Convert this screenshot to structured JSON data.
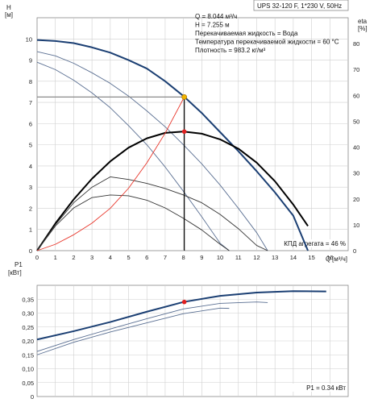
{
  "chart_data": [
    {
      "type": "line",
      "title": "UPS 32-120 F, 1*230 V, 50Hz",
      "ylabel": "H",
      "yunit": "[м]",
      "y2label": "eta",
      "y2unit": "[%]",
      "xlabel": "Q",
      "xunit": "[м³/ч]",
      "xlim": [
        0,
        17
      ],
      "ylim": [
        0,
        11
      ],
      "y2lim": [
        0,
        90
      ],
      "xticks": [
        "0",
        "1",
        "2",
        "3",
        "4",
        "5",
        "6",
        "7",
        "8",
        "9",
        "10",
        "11",
        "12",
        "13",
        "14",
        "15",
        "16"
      ],
      "yticks": [
        "0",
        "1",
        "2",
        "3",
        "4",
        "5",
        "6",
        "7",
        "8",
        "9",
        "10"
      ],
      "y2ticks": [
        "0",
        "10",
        "20",
        "30",
        "40",
        "50",
        "60",
        "70",
        "80"
      ],
      "grid": true,
      "info_lines": [
        "Q = 8.044 м³/ч",
        "H = 7.255 м",
        "Перекачиваемая жидкость = Вода",
        "Температура перекачиваемой жидкости = 60 °C",
        "Плотность = 983.2 кг/м³"
      ],
      "efficiency_label": "КПД агрегата = 46 %",
      "operating_point": {
        "q": 8.044,
        "h": 7.255,
        "eta": 46
      },
      "series": [
        {
          "axis": "H",
          "color": "#1b3f73",
          "width": 2.0,
          "x": [
            0,
            1,
            2,
            3,
            4,
            5,
            6,
            7,
            8,
            9,
            10,
            11,
            12,
            13,
            14,
            14.8
          ],
          "y": [
            9.95,
            9.9,
            9.8,
            9.6,
            9.35,
            9.0,
            8.6,
            8.0,
            7.3,
            6.5,
            5.6,
            4.7,
            3.75,
            2.75,
            1.65,
            0.0
          ]
        },
        {
          "axis": "H",
          "color": "#5a6f92",
          "width": 0.9,
          "x": [
            0,
            1,
            2,
            3,
            4,
            5,
            6,
            7,
            8,
            9,
            10,
            11,
            12,
            12.6
          ],
          "y": [
            9.4,
            9.2,
            8.85,
            8.4,
            7.9,
            7.3,
            6.6,
            5.85,
            5.0,
            4.1,
            3.1,
            2.0,
            0.85,
            0.0
          ]
        },
        {
          "axis": "H",
          "color": "#5a6f92",
          "width": 0.9,
          "x": [
            0,
            1,
            2,
            3,
            4,
            5,
            6,
            7,
            8,
            9,
            10,
            10.5
          ],
          "y": [
            8.9,
            8.55,
            8.05,
            7.45,
            6.75,
            5.9,
            5.0,
            3.95,
            2.8,
            1.6,
            0.35,
            0.0
          ]
        },
        {
          "axis": "eta",
          "color": "#000000",
          "width": 2.0,
          "x": [
            0,
            1,
            2,
            3,
            4,
            5,
            6,
            7,
            8,
            9,
            10,
            11,
            12,
            13,
            14,
            14.8
          ],
          "y": [
            0,
            10.5,
            19.8,
            27.8,
            34.5,
            39.8,
            43.4,
            45.5,
            46.0,
            45.2,
            43.0,
            39.4,
            34.0,
            26.8,
            17.8,
            9.5
          ]
        },
        {
          "axis": "eta",
          "color": "#333333",
          "width": 0.9,
          "x": [
            0,
            1,
            2,
            3,
            4,
            5,
            6,
            7,
            8,
            9,
            10,
            11,
            12,
            12.6
          ],
          "y": [
            0,
            10,
            18.5,
            24.5,
            28.5,
            27.5,
            26,
            24,
            21.5,
            18.5,
            14,
            8.5,
            2,
            0
          ]
        },
        {
          "axis": "eta",
          "color": "#333333",
          "width": 0.9,
          "x": [
            0,
            1,
            2,
            3,
            4,
            5,
            6,
            7,
            8,
            9,
            10,
            10.5
          ],
          "y": [
            0,
            9.5,
            16.5,
            20.5,
            21.5,
            21.2,
            19.5,
            16.5,
            12.5,
            8,
            2.5,
            0
          ]
        },
        {
          "axis": "H",
          "color": "#e8352a",
          "width": 0.9,
          "x": [
            0,
            1,
            2,
            3,
            4,
            5,
            6,
            7,
            8.044
          ],
          "y": [
            0,
            0.3,
            0.75,
            1.3,
            2.0,
            2.95,
            4.15,
            5.55,
            7.255
          ]
        }
      ]
    },
    {
      "type": "line",
      "ylabel": "P1",
      "yunit": "[кВт]",
      "xlim": [
        0,
        17
      ],
      "ylim": [
        0,
        0.4
      ],
      "yticks": [
        "0",
        "0,05",
        "0,10",
        "0,15",
        "0,20",
        "0,25",
        "0,30",
        "0,35"
      ],
      "grid": true,
      "power_label": "P1 = 0.34 кВт",
      "operating_point": {
        "q": 8.044,
        "p": 0.34
      },
      "series": [
        {
          "color": "#1b3f73",
          "width": 2.0,
          "x": [
            0,
            2,
            4,
            6,
            8,
            10,
            12,
            14,
            15.8
          ],
          "y": [
            0.205,
            0.235,
            0.268,
            0.305,
            0.34,
            0.362,
            0.374,
            0.379,
            0.378
          ]
        },
        {
          "color": "#5a6f92",
          "width": 0.9,
          "x": [
            0,
            2,
            4,
            6,
            8,
            10,
            12,
            12.6
          ],
          "y": [
            0.162,
            0.205,
            0.243,
            0.28,
            0.315,
            0.335,
            0.34,
            0.338
          ]
        },
        {
          "color": "#5a6f92",
          "width": 0.9,
          "x": [
            0,
            2,
            4,
            6,
            8,
            10,
            10.5
          ],
          "y": [
            0.15,
            0.195,
            0.232,
            0.265,
            0.298,
            0.318,
            0.317
          ]
        }
      ]
    }
  ]
}
